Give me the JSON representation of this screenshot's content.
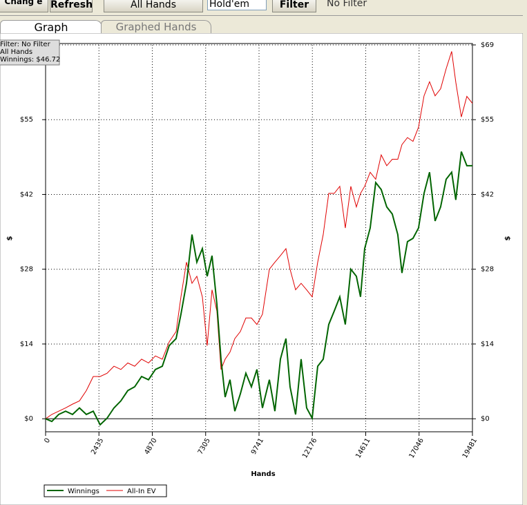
{
  "toolbar": {
    "buttons": [
      "Chang e",
      "Refresh",
      "All Hands"
    ],
    "game": "Hold'em",
    "filter_button": "Filter",
    "filter_text": "No Filter"
  },
  "tabs": [
    "Graph",
    "Graphed Hands"
  ],
  "chart_data": {
    "type": "line",
    "annotations": [
      "Filter: No Filter",
      "All Hands",
      "Winnings: $46.72"
    ],
    "x_label": "Hands",
    "y_label": "$",
    "xlim": [
      0,
      19481
    ],
    "xticks": [
      0,
      2435,
      4870,
      7305,
      9741,
      12176,
      14611,
      17046,
      19481
    ],
    "ylim": [
      -2.4,
      69
    ],
    "yticks": [
      {
        "value": 0,
        "label": "$0"
      },
      {
        "value": 13.8,
        "label": "$14"
      },
      {
        "value": 27.6,
        "label": "$28"
      },
      {
        "value": 41.4,
        "label": "$42"
      },
      {
        "value": 55.2,
        "label": "$55"
      },
      {
        "value": 69,
        "label": "$69"
      }
    ],
    "grid": true,
    "x": [
      0,
      284,
      599,
      914,
      1229,
      1545,
      1860,
      2175,
      2490,
      2805,
      3121,
      3436,
      3751,
      4066,
      4381,
      4697,
      5012,
      5327,
      5642,
      5957,
      6178,
      6430,
      6682,
      6903,
      7155,
      7376,
      7596,
      7817,
      8006,
      8195,
      8416,
      8637,
      8889,
      9141,
      9393,
      9645,
      9897,
      10213,
      10465,
      10717,
      10969,
      11158,
      11410,
      11662,
      11914,
      12167,
      12419,
      12671,
      12923,
      13175,
      13427,
      13679,
      13931,
      14184,
      14373,
      14562,
      14814,
      15066,
      15318,
      15570,
      15822,
      16074,
      16264,
      16516,
      16768,
      17020,
      17272,
      17524,
      17777,
      18029,
      18281,
      18533,
      18722,
      18974,
      19226,
      19481
    ],
    "series": [
      {
        "name": "Winnings",
        "color": "#006400",
        "values": [
          0,
          -0.5,
          0.8,
          1.4,
          0.8,
          2.0,
          0.8,
          1.4,
          -1.1,
          0.1,
          2.0,
          3.3,
          5.2,
          5.9,
          7.8,
          7.2,
          9.1,
          9.7,
          13.5,
          14.8,
          19.3,
          25.0,
          34.0,
          28.9,
          31.4,
          26.3,
          30.1,
          21.2,
          11.0,
          4.0,
          7.2,
          1.4,
          4.6,
          8.4,
          5.9,
          9.1,
          2.0,
          7.2,
          1.4,
          11.0,
          14.8,
          5.9,
          0.8,
          11.0,
          2.0,
          0.1,
          9.7,
          11.0,
          17.4,
          19.9,
          22.5,
          17.4,
          27.6,
          26.3,
          22.5,
          31.4,
          35.2,
          43.6,
          42.3,
          39.1,
          37.8,
          34.0,
          26.9,
          32.7,
          33.3,
          35.2,
          41.6,
          45.5,
          36.5,
          39.1,
          44.2,
          45.5,
          40.4,
          49.3,
          46.7,
          46.7
        ]
      },
      {
        "name": "All-In EV",
        "color": "#e00000",
        "values": [
          0,
          0.8,
          1.4,
          2.0,
          2.7,
          3.3,
          5.2,
          7.8,
          7.8,
          8.4,
          9.7,
          9.1,
          10.3,
          9.7,
          11.0,
          10.3,
          11.6,
          11.0,
          14.2,
          16.1,
          22.5,
          28.9,
          25.0,
          26.3,
          22.5,
          13.5,
          23.8,
          19.9,
          9.1,
          11.0,
          12.3,
          14.8,
          16.1,
          18.6,
          18.6,
          17.4,
          19.3,
          27.6,
          28.9,
          30.1,
          31.4,
          27.6,
          23.8,
          25.0,
          23.8,
          22.5,
          28.9,
          34.0,
          41.6,
          41.6,
          42.9,
          35.2,
          42.9,
          39.1,
          41.6,
          42.9,
          45.5,
          44.2,
          48.7,
          46.7,
          47.9,
          47.9,
          50.6,
          51.9,
          51.2,
          53.8,
          59.6,
          62.2,
          59.6,
          60.9,
          64.6,
          67.8,
          62.1,
          55.7,
          59.5,
          58.2
        ]
      }
    ]
  }
}
